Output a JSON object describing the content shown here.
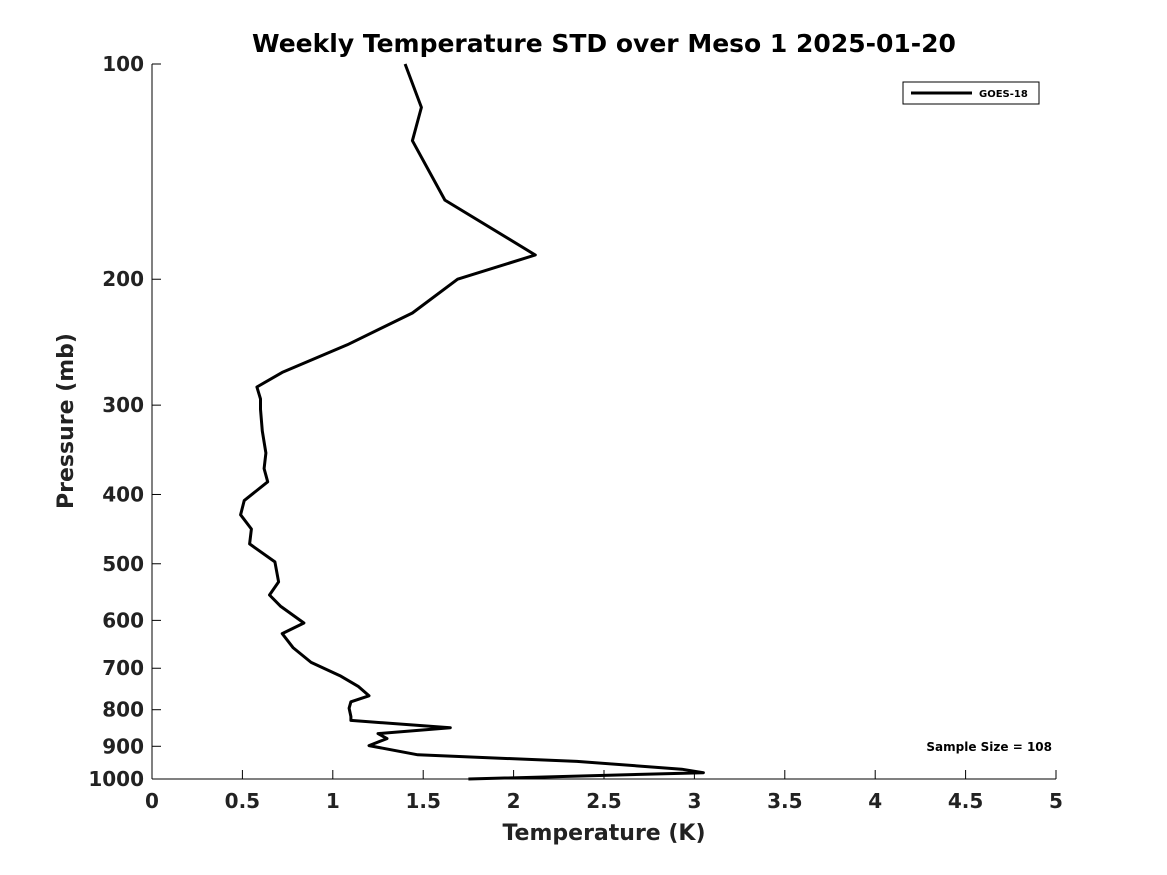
{
  "chart_data": {
    "type": "line",
    "title": "Weekly Temperature STD over Meso 1 2025-01-20",
    "xlabel": "Temperature (K)",
    "ylabel": "Pressure (mb)",
    "xlim": [
      0,
      5
    ],
    "ylim": [
      100,
      1000
    ],
    "yscale": "log",
    "yreversed": true,
    "xticks": [
      0,
      0.5,
      1,
      1.5,
      2,
      2.5,
      3,
      3.5,
      4,
      4.5,
      5
    ],
    "xtick_labels": [
      "0",
      "0.5",
      "1",
      "1.5",
      "2",
      "2.5",
      "3",
      "3.5",
      "4",
      "4.5",
      "5"
    ],
    "yticks": [
      100,
      200,
      300,
      400,
      500,
      600,
      700,
      800,
      900,
      1000
    ],
    "ytick_labels": [
      "100",
      "200",
      "300",
      "400",
      "500",
      "600",
      "700",
      "800",
      "900",
      "1000"
    ],
    "legend": {
      "position": "top-right"
    },
    "annotation": "Sample Size = 108",
    "series": [
      {
        "name": "GOES-18",
        "color": "#000000",
        "x": [
          1.4,
          1.49,
          1.44,
          1.62,
          2.12,
          1.69,
          1.44,
          1.08,
          0.72,
          0.58,
          0.6,
          0.6,
          0.61,
          0.63,
          0.62,
          0.64,
          0.51,
          0.49,
          0.55,
          0.54,
          0.68,
          0.7,
          0.65,
          0.71,
          0.84,
          0.72,
          0.78,
          0.88,
          1.04,
          1.14,
          1.2,
          1.1,
          1.09,
          1.1,
          1.1,
          1.65,
          1.25,
          1.3,
          1.2,
          1.47,
          2.35,
          2.93,
          3.05,
          1.75
        ],
        "y": [
          100,
          115,
          128,
          155,
          185,
          200,
          223,
          247,
          270,
          283,
          294,
          304,
          326,
          350,
          368,
          384,
          408,
          427,
          447,
          469,
          497,
          530,
          553,
          573,
          605,
          626,
          655,
          687,
          717,
          742,
          765,
          780,
          796,
          818,
          828,
          848,
          864,
          878,
          898,
          925,
          945,
          969,
          980,
          1000
        ]
      }
    ]
  }
}
